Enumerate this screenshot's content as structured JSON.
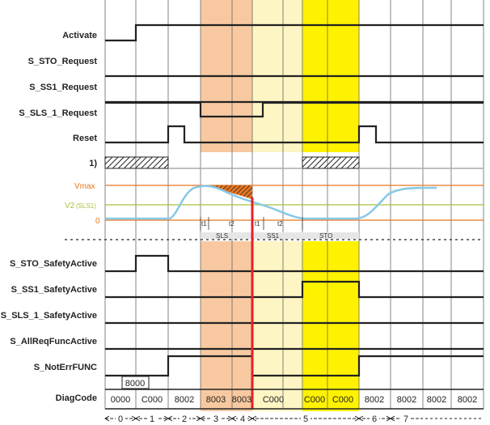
{
  "signals": {
    "activate": "Activate",
    "sto_request": "S_STO_Request",
    "ss1_request": "S_SS1_Request",
    "sls1_request": "S_SLS_1_Request",
    "reset": "Reset",
    "note": "1)",
    "sto_active": "S_STO_SafetyActive",
    "ss1_active": "S_SS1_SafetyActive",
    "sls1_active": "S_SLS_1_SafetyActive",
    "allreq": "S_AllReqFuncActive",
    "noterr": "S_NotErrFUNC",
    "diagcode": "DiagCode"
  },
  "speed": {
    "vmax": "Vmax",
    "v2": "V2",
    "v2_sub": "(SLS1)",
    "zero": "0",
    "t1": "t1",
    "t2": "t2"
  },
  "phases": {
    "sls": "SLS",
    "ss1": "SS1",
    "sto": "STO"
  },
  "diag": {
    "box": "8000",
    "codes": [
      "0000",
      "C000",
      "8002",
      "8003",
      "8003",
      "C000",
      "C000",
      "C000",
      "8002",
      "8002",
      "8002",
      "8002"
    ]
  },
  "segments": [
    "0",
    "1",
    "2",
    "3",
    "4",
    "5",
    "6",
    "7"
  ],
  "colors": {
    "sls_zone": "#f8c9a0",
    "ss1_zone": "#fdf5c3",
    "sto_zone": "#fff200",
    "trip_line": "#e8202a",
    "speed_curve": "#87c8e8",
    "vmax_line": "#e87722",
    "v2_line": "#a8c23a"
  }
}
